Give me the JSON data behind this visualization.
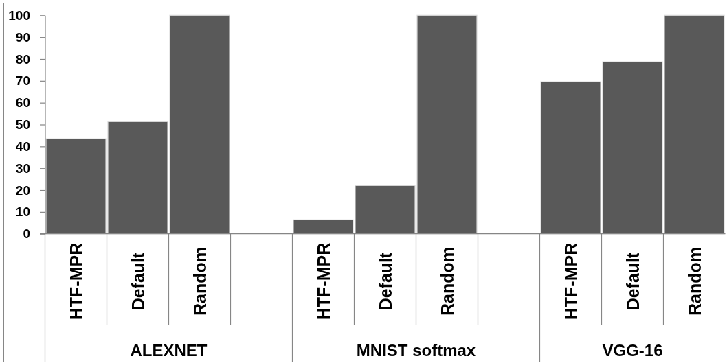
{
  "chart_data": {
    "type": "bar",
    "categories": [
      "HTF-MPR",
      "Default",
      "Random",
      null,
      "HTF-MPR",
      "Default",
      "Random",
      null,
      "HTF-MPR",
      "Default",
      "Random"
    ],
    "values": [
      43.5,
      51.3,
      100,
      null,
      6.4,
      22.1,
      100,
      null,
      69.6,
      78.7,
      100
    ],
    "color": "#595959",
    "ylim": [
      0,
      100
    ],
    "yticks": [
      0,
      10,
      20,
      30,
      40,
      50,
      60,
      70,
      80,
      90,
      100
    ],
    "annotations": [
      "ALEXNET",
      "MNIST softmax",
      "VGG-16"
    ]
  }
}
